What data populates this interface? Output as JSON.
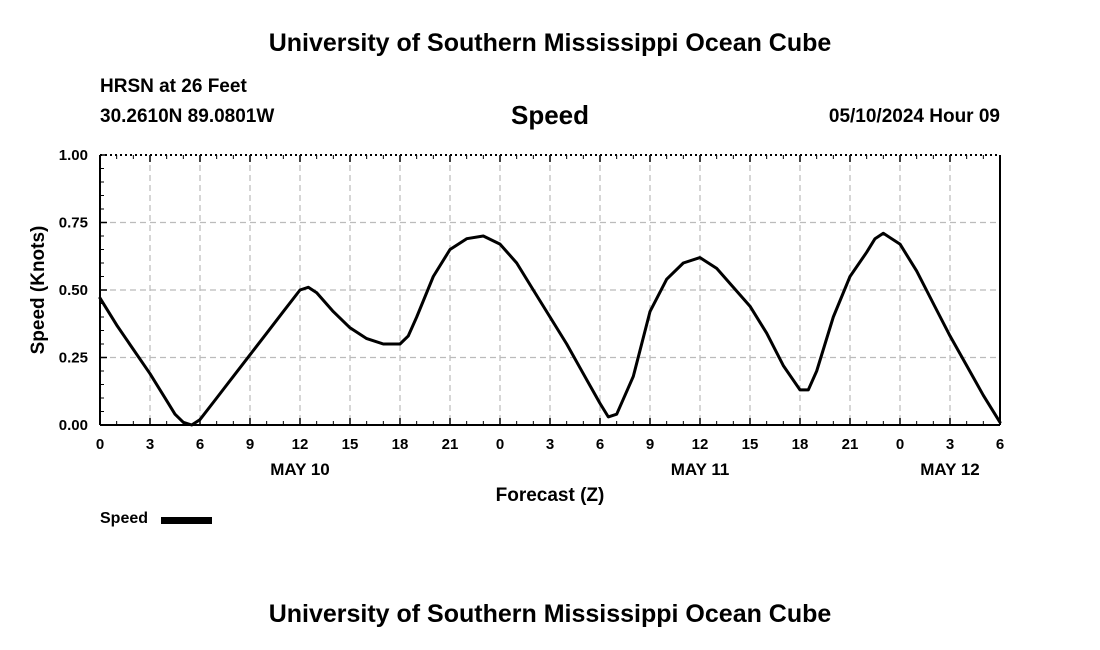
{
  "page": {
    "title_top": "University of Southern Mississippi Ocean Cube",
    "title_bottom": "University of Southern Mississippi Ocean Cube",
    "station": "HRSN at 26 Feet",
    "location": "30.2610N  89.0801W",
    "timestamp": "05/10/2024 Hour 09",
    "legend_label": "Speed"
  },
  "chart_data": {
    "type": "line",
    "title": "Speed",
    "xlabel": "Forecast (Z)",
    "ylabel": "Speed (Knots)",
    "xlim": [
      0,
      54
    ],
    "ylim": [
      0,
      1
    ],
    "yticks": [
      "0.00",
      "0.25",
      "0.50",
      "0.75",
      "1.00"
    ],
    "xticks": [
      "0",
      "3",
      "6",
      "9",
      "12",
      "15",
      "18",
      "21",
      "0",
      "3",
      "6",
      "9",
      "12",
      "15",
      "18",
      "21",
      "0",
      "3",
      "6"
    ],
    "day_labels": [
      {
        "label": "MAY 10",
        "x": 12
      },
      {
        "label": "MAY 11",
        "x": 36
      },
      {
        "label": "MAY 12",
        "x": 51
      }
    ],
    "grid": true,
    "legend": "bottom-left",
    "series": [
      {
        "name": "Speed",
        "color": "#000000",
        "x": [
          0,
          1,
          2,
          3,
          4,
          4.5,
          5,
          5.5,
          6,
          7,
          8,
          9,
          10,
          11,
          12,
          12.5,
          13,
          14,
          15,
          16,
          17,
          18,
          18.5,
          19,
          20,
          21,
          22,
          23,
          24,
          25,
          26,
          27,
          28,
          29,
          30,
          30.5,
          31,
          32,
          33,
          34,
          35,
          36,
          37,
          38,
          39,
          40,
          41,
          42,
          42.5,
          43,
          44,
          45,
          46,
          46.5,
          47,
          48,
          49,
          50,
          51,
          52,
          53,
          54
        ],
        "y": [
          0.47,
          0.37,
          0.28,
          0.19,
          0.09,
          0.04,
          0.01,
          0.0,
          0.02,
          0.1,
          0.18,
          0.26,
          0.34,
          0.42,
          0.5,
          0.51,
          0.49,
          0.42,
          0.36,
          0.32,
          0.3,
          0.3,
          0.33,
          0.4,
          0.55,
          0.65,
          0.69,
          0.7,
          0.67,
          0.6,
          0.5,
          0.4,
          0.3,
          0.19,
          0.08,
          0.03,
          0.04,
          0.18,
          0.42,
          0.54,
          0.6,
          0.62,
          0.58,
          0.51,
          0.44,
          0.34,
          0.22,
          0.13,
          0.13,
          0.2,
          0.4,
          0.55,
          0.64,
          0.69,
          0.71,
          0.67,
          0.57,
          0.45,
          0.33,
          0.22,
          0.11,
          0.01
        ]
      }
    ]
  }
}
